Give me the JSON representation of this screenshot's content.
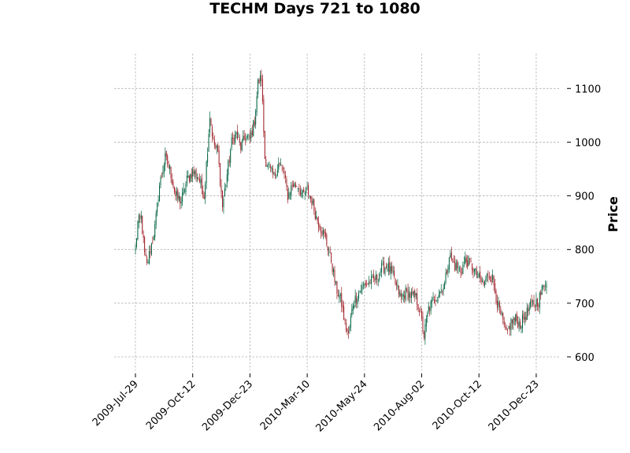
{
  "chart_data": {
    "type": "candlestick",
    "title": "TECHM Days 721 to 1080",
    "xlabel": "",
    "ylabel": "Price",
    "ylim": [
      575,
      1165
    ],
    "yticks": [
      600,
      700,
      800,
      900,
      1000,
      1100
    ],
    "ytick_labels": [
      "600",
      "700",
      "800",
      "900",
      "1000",
      "1100"
    ],
    "xticks": [
      {
        "label": "2009-Jul-29",
        "index": 0
      },
      {
        "label": "2009-Oct-12",
        "index": 50
      },
      {
        "label": "2009-Dec-23",
        "index": 100
      },
      {
        "label": "2010-Mar-10",
        "index": 150
      },
      {
        "label": "2010-May-24",
        "index": 200
      },
      {
        "label": "2010-Aug-02",
        "index": 250
      },
      {
        "label": "2010-Oct-12",
        "index": 300
      },
      {
        "label": "2010-Dec-23",
        "index": 350
      }
    ],
    "num_candles": 360,
    "close_anchors": [
      [
        0,
        800
      ],
      [
        2,
        850
      ],
      [
        5,
        860
      ],
      [
        8,
        790
      ],
      [
        10,
        770
      ],
      [
        14,
        810
      ],
      [
        17,
        840
      ],
      [
        21,
        920
      ],
      [
        26,
        970
      ],
      [
        30,
        950
      ],
      [
        35,
        900
      ],
      [
        40,
        890
      ],
      [
        45,
        930
      ],
      [
        50,
        945
      ],
      [
        55,
        935
      ],
      [
        60,
        900
      ],
      [
        65,
        1050
      ],
      [
        68,
        1000
      ],
      [
        72,
        980
      ],
      [
        76,
        880
      ],
      [
        80,
        940
      ],
      [
        84,
        1000
      ],
      [
        88,
        1015
      ],
      [
        92,
        990
      ],
      [
        96,
        1010
      ],
      [
        100,
        1005
      ],
      [
        104,
        1040
      ],
      [
        107,
        1110
      ],
      [
        110,
        1120
      ],
      [
        113,
        970
      ],
      [
        117,
        950
      ],
      [
        121,
        935
      ],
      [
        125,
        960
      ],
      [
        129,
        950
      ],
      [
        133,
        900
      ],
      [
        137,
        920
      ],
      [
        142,
        920
      ],
      [
        146,
        900
      ],
      [
        150,
        910
      ],
      [
        154,
        890
      ],
      [
        158,
        860
      ],
      [
        162,
        840
      ],
      [
        166,
        820
      ],
      [
        171,
        780
      ],
      [
        175,
        730
      ],
      [
        180,
        700
      ],
      [
        183,
        660
      ],
      [
        186,
        640
      ],
      [
        190,
        700
      ],
      [
        195,
        720
      ],
      [
        200,
        735
      ],
      [
        205,
        740
      ],
      [
        210,
        745
      ],
      [
        215,
        765
      ],
      [
        220,
        770
      ],
      [
        224,
        755
      ],
      [
        228,
        730
      ],
      [
        232,
        710
      ],
      [
        236,
        720
      ],
      [
        240,
        715
      ],
      [
        245,
        710
      ],
      [
        248,
        690
      ],
      [
        252,
        640
      ],
      [
        256,
        690
      ],
      [
        260,
        705
      ],
      [
        265,
        720
      ],
      [
        270,
        735
      ],
      [
        274,
        790
      ],
      [
        279,
        770
      ],
      [
        284,
        760
      ],
      [
        288,
        780
      ],
      [
        292,
        775
      ],
      [
        296,
        760
      ],
      [
        300,
        745
      ],
      [
        304,
        735
      ],
      [
        308,
        755
      ],
      [
        312,
        745
      ],
      [
        316,
        700
      ],
      [
        320,
        670
      ],
      [
        324,
        640
      ],
      [
        328,
        665
      ],
      [
        332,
        670
      ],
      [
        336,
        660
      ],
      [
        340,
        675
      ],
      [
        344,
        690
      ],
      [
        348,
        700
      ],
      [
        352,
        705
      ],
      [
        356,
        730
      ],
      [
        359,
        745
      ]
    ],
    "colors": {
      "up": "#006340",
      "down": "#a02128",
      "grid": "#b0b0b0"
    },
    "grid": true,
    "y_axis_side": "right"
  }
}
